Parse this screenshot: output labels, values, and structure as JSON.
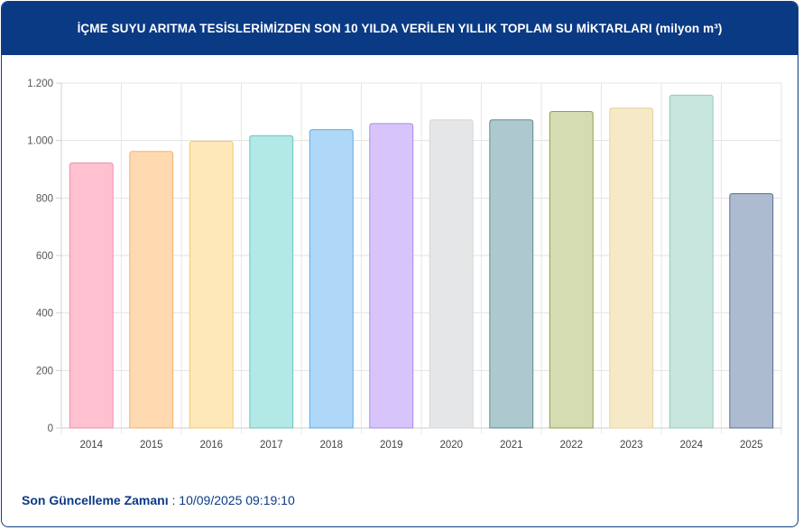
{
  "header": {
    "title": "İÇME SUYU ARITMA TESİSLERİMİZDEN SON 10 YILDA VERİLEN YILLIK TOPLAM SU MİKTARLARI (milyon m³)"
  },
  "footer": {
    "label": "Son Güncelleme Zamanı",
    "separator": " : ",
    "value": "10/09/2025 09:19:10"
  },
  "chart_data": {
    "type": "bar",
    "categories": [
      "2014",
      "2015",
      "2016",
      "2017",
      "2018",
      "2019",
      "2020",
      "2021",
      "2022",
      "2023",
      "2024",
      "2025"
    ],
    "values": [
      922,
      962,
      997,
      1017,
      1038,
      1059,
      1072,
      1072,
      1101,
      1113,
      1158,
      815
    ],
    "ylim": [
      0,
      1200
    ],
    "yticks": [
      0,
      200,
      400,
      600,
      800,
      1000,
      1200
    ],
    "ytick_labels": [
      "0",
      "200",
      "400",
      "600",
      "800",
      "1.000",
      "1.200"
    ],
    "grid": true,
    "colors": [
      {
        "fill": "#ffc0cf",
        "stroke": "#ee8fa8"
      },
      {
        "fill": "#ffd9b0",
        "stroke": "#f5b070"
      },
      {
        "fill": "#ffe8b8",
        "stroke": "#f2c868"
      },
      {
        "fill": "#b2e8e6",
        "stroke": "#66c5c2"
      },
      {
        "fill": "#afd8f8",
        "stroke": "#5aa8e6"
      },
      {
        "fill": "#d7c4fb",
        "stroke": "#a98ae8"
      },
      {
        "fill": "#e5e6e8",
        "stroke": "#d3d5d8"
      },
      {
        "fill": "#adc9cd",
        "stroke": "#5b8c93"
      },
      {
        "fill": "#d6dcb2",
        "stroke": "#8f9c52"
      },
      {
        "fill": "#f6e9c7",
        "stroke": "#e7d29a"
      },
      {
        "fill": "#c8e6de",
        "stroke": "#92c8ba"
      },
      {
        "fill": "#acbbcf",
        "stroke": "#5a7090"
      }
    ]
  }
}
